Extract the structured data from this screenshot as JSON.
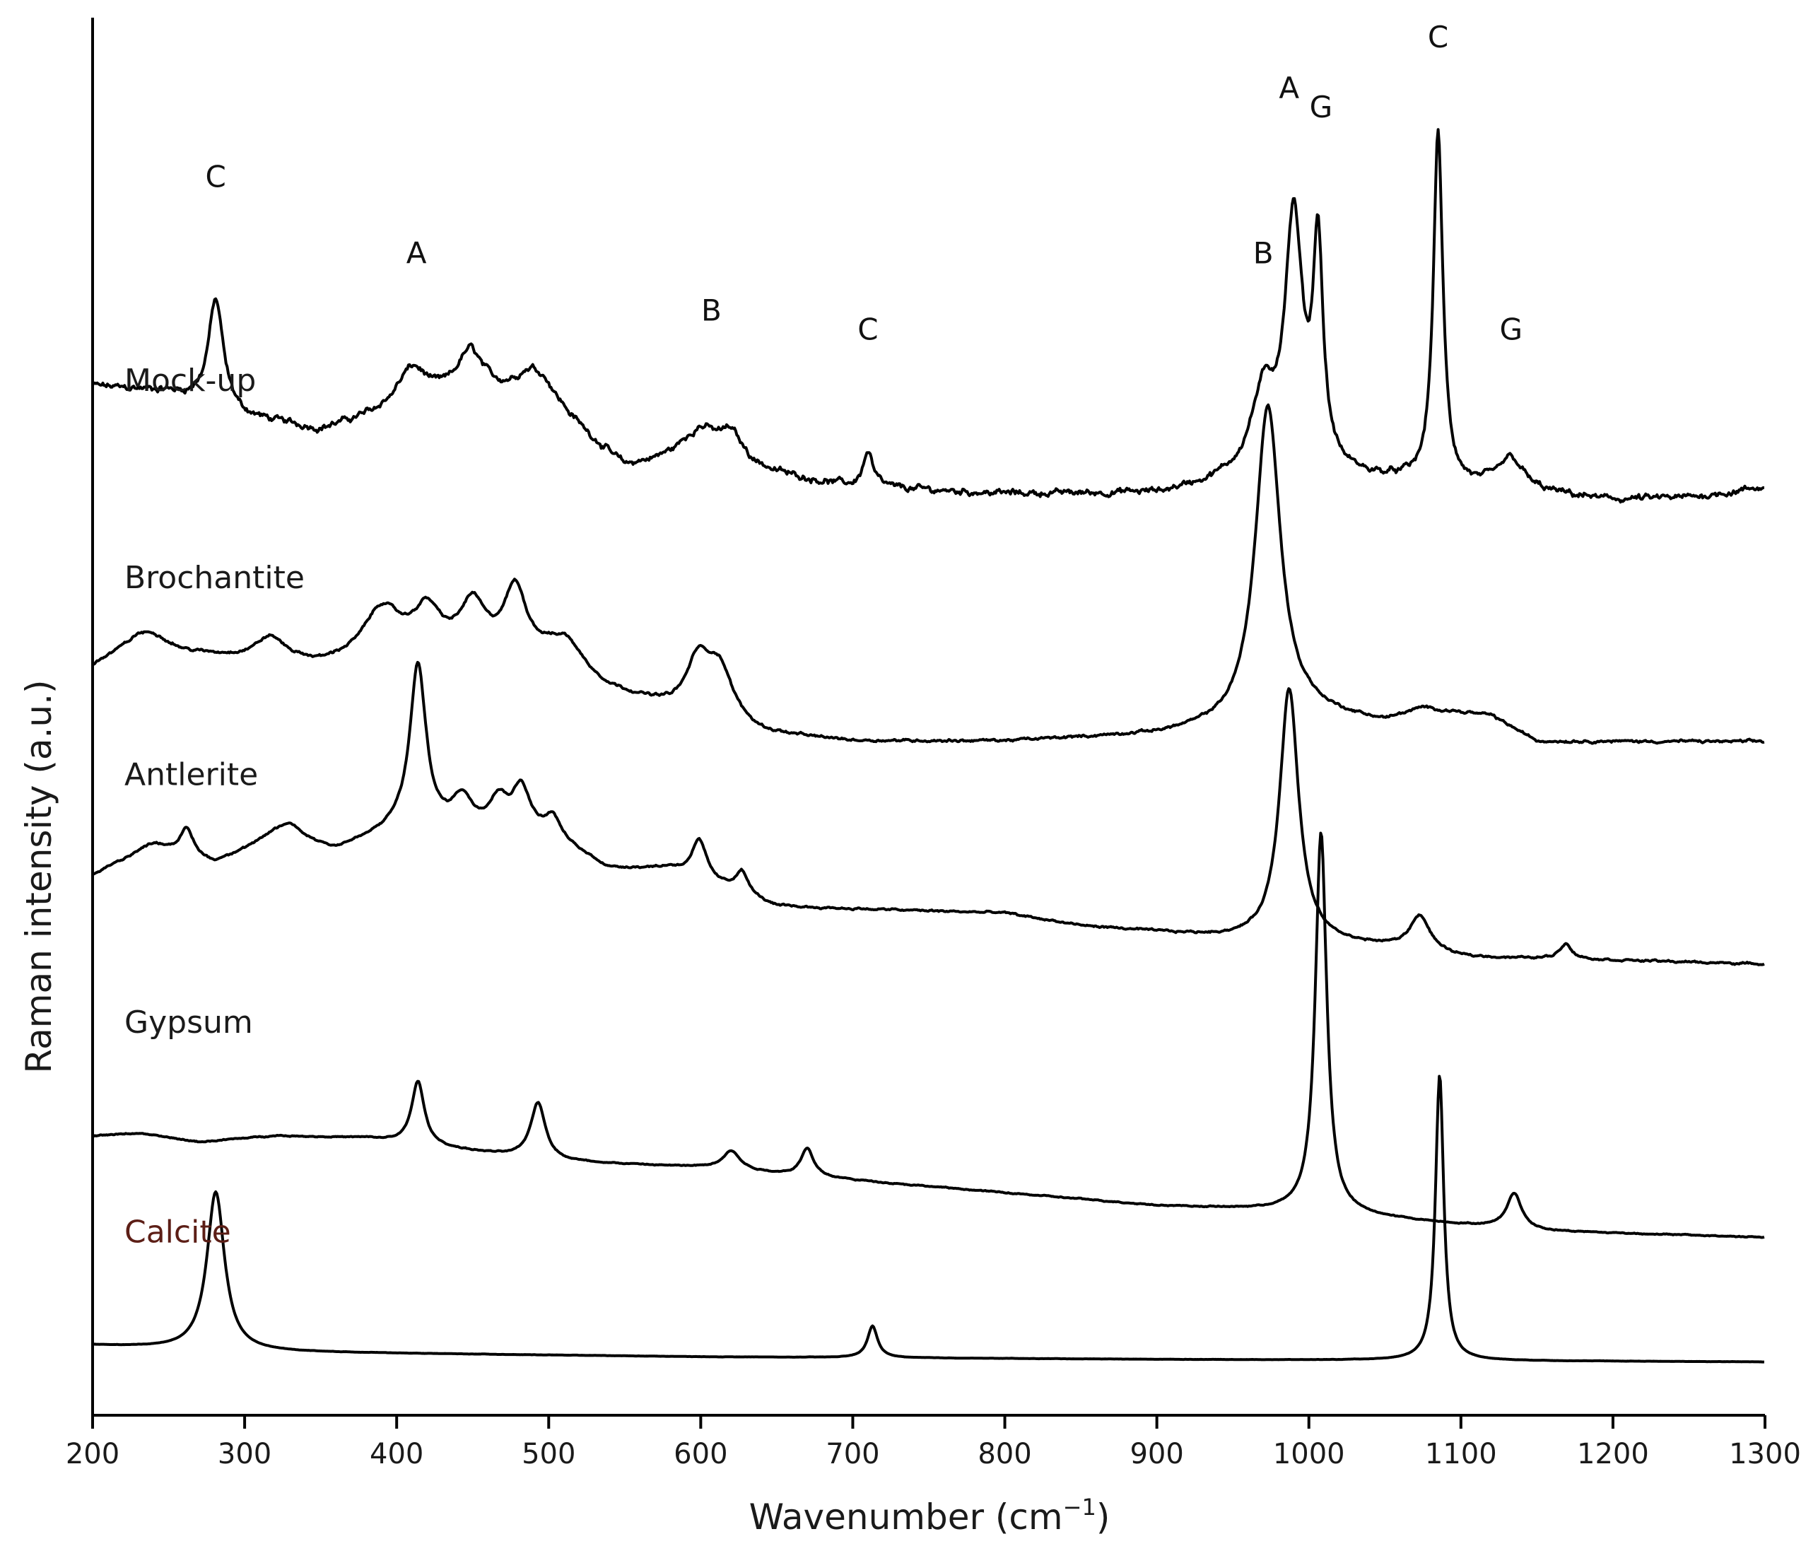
{
  "chart_data": {
    "type": "line",
    "title": "",
    "xlabel": "Wavenumber (cm",
    "xlabel_sup": "−1",
    "xlabel_close": ")",
    "ylabel": "Raman intensity (a.u.)",
    "xlim": [
      200,
      1300
    ],
    "xticks": [
      200,
      300,
      400,
      500,
      600,
      700,
      800,
      900,
      1000,
      1100,
      1200,
      1300
    ],
    "y_ticks_shown": false,
    "grid": false,
    "legend": "none (series names printed above each trace)",
    "series": [
      {
        "name": "Mock-up",
        "color": "#000000",
        "name_color": "#1a1a1a",
        "baseline": 8.15,
        "noise": 0.05,
        "points": [
          [
            200,
            8.1
          ],
          [
            250,
            8.05
          ],
          [
            300,
            7.85
          ],
          [
            350,
            7.75
          ],
          [
            400,
            7.9
          ],
          [
            450,
            8.05
          ],
          [
            500,
            7.95
          ],
          [
            550,
            7.45
          ],
          [
            600,
            7.55
          ],
          [
            650,
            7.4
          ],
          [
            700,
            7.3
          ],
          [
            800,
            7.25
          ],
          [
            900,
            7.25
          ],
          [
            950,
            7.35
          ],
          [
            1000,
            7.4
          ],
          [
            1100,
            7.3
          ],
          [
            1150,
            7.25
          ],
          [
            1200,
            7.2
          ],
          [
            1250,
            7.22
          ],
          [
            1300,
            7.3
          ]
        ],
        "peaks": [
          {
            "x": 281,
            "h": 0.85,
            "w": 6
          },
          {
            "x": 410,
            "h": 0.3,
            "w": 12
          },
          {
            "x": 448,
            "h": 0.3,
            "w": 10
          },
          {
            "x": 490,
            "h": 0.25,
            "w": 14
          },
          {
            "x": 600,
            "h": 0.2,
            "w": 15
          },
          {
            "x": 620,
            "h": 0.2,
            "w": 9
          },
          {
            "x": 710,
            "h": 0.28,
            "w": 4
          },
          {
            "x": 970,
            "h": 0.6,
            "w": 10
          },
          {
            "x": 990,
            "h": 1.95,
            "w": 7
          },
          {
            "x": 1006,
            "h": 1.7,
            "w": 4
          },
          {
            "x": 1085,
            "h": 2.75,
            "w": 3.8
          },
          {
            "x": 1133,
            "h": 0.25,
            "w": 10
          }
        ],
        "peak_labels": [
          {
            "text": "C",
            "x": 281,
            "y": 9.75
          },
          {
            "text": "A",
            "x": 413,
            "y": 9.15
          },
          {
            "text": "B",
            "x": 607,
            "y": 8.7
          },
          {
            "text": "C",
            "x": 710,
            "y": 8.55
          },
          {
            "text": "B",
            "x": 970,
            "y": 9.15
          },
          {
            "text": "A",
            "x": 987,
            "y": 10.45
          },
          {
            "text": "G",
            "x": 1008,
            "y": 10.3
          },
          {
            "text": "C",
            "x": 1085,
            "y": 10.85
          },
          {
            "text": "G",
            "x": 1133,
            "y": 8.55
          }
        ]
      },
      {
        "name": "Brochantite",
        "color": "#000000",
        "name_color": "#1a1a1a",
        "baseline": 6.6,
        "noise": 0.02,
        "points": [
          [
            200,
            5.9
          ],
          [
            230,
            6.1
          ],
          [
            260,
            6.0
          ],
          [
            300,
            5.95
          ],
          [
            350,
            5.9
          ],
          [
            400,
            6.0
          ],
          [
            500,
            5.95
          ],
          [
            540,
            5.7
          ],
          [
            580,
            5.55
          ],
          [
            640,
            5.35
          ],
          [
            700,
            5.3
          ],
          [
            800,
            5.3
          ],
          [
            900,
            5.35
          ],
          [
            950,
            5.4
          ],
          [
            1000,
            5.5
          ],
          [
            1050,
            5.45
          ],
          [
            1075,
            5.55
          ],
          [
            1120,
            5.5
          ],
          [
            1150,
            5.3
          ],
          [
            1200,
            5.3
          ],
          [
            1300,
            5.3
          ]
        ],
        "peaks": [
          {
            "x": 240,
            "h": 0.08,
            "w": 12
          },
          {
            "x": 317,
            "h": 0.18,
            "w": 12
          },
          {
            "x": 390,
            "h": 0.35,
            "w": 14
          },
          {
            "x": 420,
            "h": 0.32,
            "w": 11
          },
          {
            "x": 450,
            "h": 0.38,
            "w": 10
          },
          {
            "x": 478,
            "h": 0.52,
            "w": 9
          },
          {
            "x": 512,
            "h": 0.2,
            "w": 12
          },
          {
            "x": 598,
            "h": 0.38,
            "w": 9
          },
          {
            "x": 612,
            "h": 0.42,
            "w": 11
          },
          {
            "x": 973,
            "h": 2.5,
            "w": 10
          }
        ]
      },
      {
        "name": "Antlerite",
        "color": "#000000",
        "name_color": "#1a1a1a",
        "baseline": 5.05,
        "noise": 0.015,
        "points": [
          [
            200,
            4.25
          ],
          [
            240,
            4.5
          ],
          [
            280,
            4.35
          ],
          [
            320,
            4.55
          ],
          [
            360,
            4.45
          ],
          [
            400,
            4.6
          ],
          [
            500,
            4.55
          ],
          [
            540,
            4.3
          ],
          [
            580,
            4.3
          ],
          [
            650,
            4.0
          ],
          [
            800,
            3.95
          ],
          [
            850,
            3.85
          ],
          [
            900,
            3.8
          ],
          [
            950,
            3.75
          ],
          [
            1000,
            3.72
          ],
          [
            1050,
            3.68
          ],
          [
            1100,
            3.6
          ],
          [
            1200,
            3.58
          ],
          [
            1300,
            3.55
          ]
        ],
        "peaks": [
          {
            "x": 262,
            "h": 0.2,
            "w": 5
          },
          {
            "x": 330,
            "h": 0.12,
            "w": 10
          },
          {
            "x": 414,
            "h": 1.3,
            "w": 6.5
          },
          {
            "x": 443,
            "h": 0.25,
            "w": 8
          },
          {
            "x": 467,
            "h": 0.25,
            "w": 8
          },
          {
            "x": 482,
            "h": 0.35,
            "w": 7
          },
          {
            "x": 503,
            "h": 0.15,
            "w": 6
          },
          {
            "x": 599,
            "h": 0.3,
            "w": 6
          },
          {
            "x": 627,
            "h": 0.18,
            "w": 5
          },
          {
            "x": 987,
            "h": 2.0,
            "w": 7.5
          },
          {
            "x": 1073,
            "h": 0.28,
            "w": 8
          },
          {
            "x": 1169,
            "h": 0.12,
            "w": 5
          }
        ]
      },
      {
        "name": "Gypsum",
        "color": "#000000",
        "name_color": "#1a1a1a",
        "baseline": 3.1,
        "noise": 0.008,
        "points": [
          [
            200,
            2.2
          ],
          [
            230,
            2.22
          ],
          [
            270,
            2.15
          ],
          [
            320,
            2.2
          ],
          [
            380,
            2.18
          ],
          [
            500,
            2.0
          ],
          [
            600,
            1.95
          ],
          [
            700,
            1.85
          ],
          [
            800,
            1.75
          ],
          [
            900,
            1.65
          ],
          [
            1000,
            1.6
          ],
          [
            1050,
            1.55
          ],
          [
            1150,
            1.45
          ],
          [
            1300,
            1.4
          ]
        ],
        "peaks": [
          {
            "x": 414,
            "h": 0.5,
            "w": 5
          },
          {
            "x": 493,
            "h": 0.45,
            "w": 6
          },
          {
            "x": 620,
            "h": 0.15,
            "w": 7
          },
          {
            "x": 670,
            "h": 0.22,
            "w": 5
          },
          {
            "x": 1008,
            "h": 3.0,
            "w": 4.5
          },
          {
            "x": 1135,
            "h": 0.28,
            "w": 6
          }
        ]
      },
      {
        "name": "Calcite",
        "color": "#000000",
        "name_color": "#5c1e16",
        "baseline": 1.45,
        "noise": 0.002,
        "points": [
          [
            200,
            0.55
          ],
          [
            300,
            0.5
          ],
          [
            600,
            0.46
          ],
          [
            900,
            0.44
          ],
          [
            1300,
            0.42
          ]
        ],
        "peaks": [
          {
            "x": 281,
            "h": 1.25,
            "w": 7
          },
          {
            "x": 713,
            "h": 0.25,
            "w": 4
          },
          {
            "x": 1086,
            "h": 2.25,
            "w": 3.3
          }
        ]
      }
    ]
  }
}
